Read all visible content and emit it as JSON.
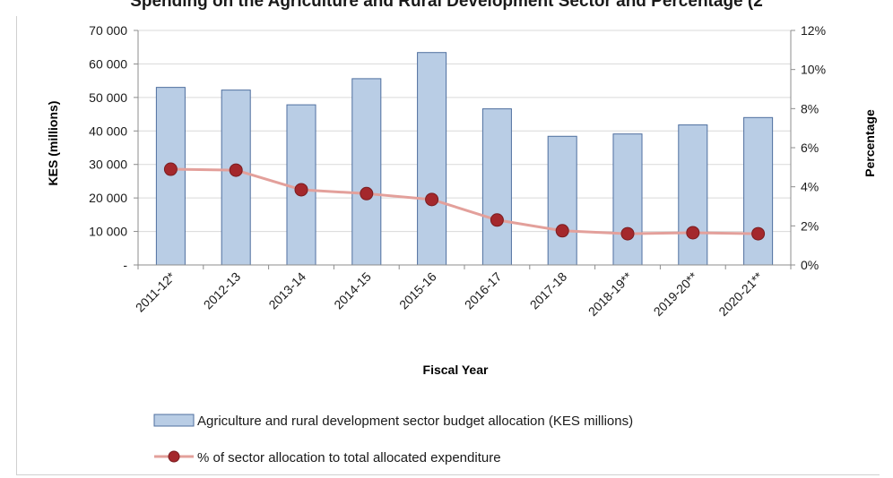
{
  "header": {
    "title": "Spending on the Agriculture and Rural Development Sector and Percentage (2"
  },
  "chart_data": {
    "type": "bar",
    "xlabel": "Fiscal Year",
    "ylabel": "KES (millions)",
    "y2label": "Percentage",
    "categories": [
      "2011-12*",
      "2012-13",
      "2013-14",
      "2014-15",
      "2015-16",
      "2016-17",
      "2017-18",
      "2018-19**",
      "2019-20**",
      "2020-21**"
    ],
    "ylim": [
      0,
      70000
    ],
    "y2lim": [
      0,
      12
    ],
    "y_ticks": [
      "-",
      "10 000",
      "20 000",
      "30 000",
      "40 000",
      "50 000",
      "60 000",
      "70 000"
    ],
    "y2_ticks": [
      "0%",
      "2%",
      "4%",
      "6%",
      "8%",
      "10%",
      "12%"
    ],
    "series": [
      {
        "name": "Agriculture and rural development sector budget allocation (KES millions)",
        "type": "bar",
        "axis": "left",
        "color": "#b9cde5",
        "stroke": "#4f6f9f",
        "values": [
          53000,
          52200,
          47800,
          55600,
          63400,
          46600,
          38400,
          39100,
          41800,
          44000
        ]
      },
      {
        "name": "% of sector allocation to total allocated expenditure",
        "type": "line",
        "axis": "right",
        "color": "#e3a09b",
        "marker_color": "#a4282c",
        "values": [
          4.9,
          4.85,
          3.85,
          3.65,
          3.35,
          2.3,
          1.75,
          1.6,
          1.65,
          1.6
        ]
      }
    ],
    "legend_position": "bottom",
    "grid": "horizontal"
  }
}
